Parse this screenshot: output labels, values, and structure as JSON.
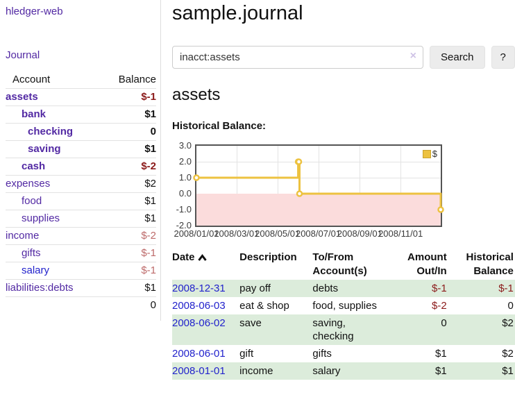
{
  "app": {
    "brand": "hledger-web",
    "nav_journal": "Journal"
  },
  "colors": {
    "accent_purple": "#5229a3",
    "link_blue": "#2222cc",
    "negative_strong": "#8b1a1a",
    "negative_soft": "#bd6a6a",
    "row_green": "#dcecdb",
    "chart_line_gold": "#edc240",
    "below_zero_pink": "#fbdcdc",
    "zero_line_red": "#8b0000"
  },
  "sidebar": {
    "table": {
      "account_header": "Account",
      "balance_header": "Balance",
      "rows": [
        {
          "name": "assets",
          "balance": "$-1",
          "indent": 0,
          "bold": true,
          "name_color": "purple",
          "balance_color": "darkred"
        },
        {
          "name": "bank",
          "balance": "$1",
          "indent": 1,
          "bold": true,
          "name_color": "purple",
          "balance_color": "black"
        },
        {
          "name": "checking",
          "balance": "0",
          "indent": 2,
          "bold": true,
          "name_color": "purple",
          "balance_color": "black"
        },
        {
          "name": "saving",
          "balance": "$1",
          "indent": 2,
          "bold": true,
          "name_color": "purple",
          "balance_color": "black"
        },
        {
          "name": "cash",
          "balance": "$-2",
          "indent": 1,
          "bold": true,
          "name_color": "purple",
          "balance_color": "darkred"
        },
        {
          "name": "expenses",
          "balance": "$2",
          "indent": 0,
          "bold": false,
          "name_color": "purple",
          "balance_color": "black"
        },
        {
          "name": "food",
          "balance": "$1",
          "indent": 1,
          "bold": false,
          "name_color": "purple",
          "balance_color": "black"
        },
        {
          "name": "supplies",
          "balance": "$1",
          "indent": 1,
          "bold": false,
          "name_color": "purple",
          "balance_color": "black"
        },
        {
          "name": "income",
          "balance": "$-2",
          "indent": 0,
          "bold": false,
          "name_color": "purple",
          "balance_color": "rose"
        },
        {
          "name": "gifts",
          "balance": "$-1",
          "indent": 1,
          "bold": false,
          "name_color": "purple",
          "balance_color": "rose"
        },
        {
          "name": "salary",
          "balance": "$-1",
          "indent": 1,
          "bold": false,
          "name_color": "blue",
          "balance_color": "rose"
        },
        {
          "name": "liabilities:debts",
          "balance": "$1",
          "indent": 0,
          "bold": false,
          "name_color": "purple",
          "balance_color": "black"
        }
      ],
      "total": "0"
    }
  },
  "main": {
    "title": "sample.journal",
    "search": {
      "value": "inacct:assets",
      "clear_icon": "×",
      "button": "Search",
      "help_button": "?"
    },
    "account_heading": "assets",
    "chart_label": "Historical Balance:"
  },
  "chart_data": {
    "type": "line",
    "title": "Historical Balance",
    "step": true,
    "series": [
      {
        "name": "$",
        "color": "#edc240",
        "points": [
          {
            "x": "2008/01/01",
            "y": 1
          },
          {
            "x": "2008/06/01",
            "y": 2
          },
          {
            "x": "2008/06/02",
            "y": 2
          },
          {
            "x": "2008/06/03",
            "y": 0
          },
          {
            "x": "2008/12/31",
            "y": -1
          }
        ]
      }
    ],
    "ylim": [
      -2,
      3
    ],
    "yticks": [
      "3.0",
      "2.0",
      "1.0",
      "0.0",
      "-1.0",
      "-2.0"
    ],
    "xticks": [
      "2008/01/01",
      "2008/03/01",
      "2008/05/01",
      "2008/07/01",
      "2008/09/01",
      "2008/11/01"
    ],
    "legend": {
      "label": "$",
      "position": "top-right"
    },
    "grid": true,
    "negative_region_shaded": true
  },
  "transactions": {
    "headers": [
      "Date",
      "Description",
      "To/From Account(s)",
      "Amount Out/In",
      "Historical Balance"
    ],
    "sort_icon": "chevron-up",
    "rows": [
      {
        "date": "2008-12-31",
        "description": "pay off",
        "accounts": "debts",
        "amount": "$-1",
        "balance": "$-1",
        "amount_negative": true,
        "balance_negative": true
      },
      {
        "date": "2008-06-03",
        "description": "eat & shop",
        "accounts": "food, supplies",
        "amount": "$-2",
        "balance": "0",
        "amount_negative": true,
        "balance_negative": false
      },
      {
        "date": "2008-06-02",
        "description": "save",
        "accounts": "saving, checking",
        "amount": "0",
        "balance": "$2",
        "amount_negative": false,
        "balance_negative": false
      },
      {
        "date": "2008-06-01",
        "description": "gift",
        "accounts": "gifts",
        "amount": "$1",
        "balance": "$2",
        "amount_negative": false,
        "balance_negative": false
      },
      {
        "date": "2008-01-01",
        "description": "income",
        "accounts": "salary",
        "amount": "$1",
        "balance": "$1",
        "amount_negative": false,
        "balance_negative": false
      }
    ]
  }
}
